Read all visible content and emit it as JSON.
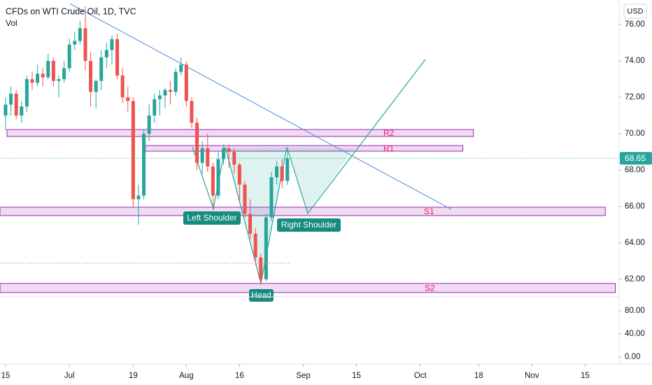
{
  "chart_data": {
    "type": "candlestick",
    "title": "CFDs on WTI Crude Oil, 1D, TVC",
    "subtitle": "Vol",
    "currency": "USD",
    "up_color": "#26a69a",
    "down_color": "#ef5350",
    "ohlc": [
      [
        71.0,
        72.0,
        70.2,
        71.6
      ],
      [
        71.6,
        72.6,
        71.0,
        72.2
      ],
      [
        72.2,
        72.4,
        70.8,
        71.0
      ],
      [
        71.0,
        71.8,
        70.6,
        71.5
      ],
      [
        71.5,
        73.2,
        71.2,
        73.0
      ],
      [
        73.0,
        73.4,
        72.4,
        72.8
      ],
      [
        72.8,
        73.8,
        72.6,
        73.3
      ],
      [
        73.3,
        73.6,
        72.6,
        73.1
      ],
      [
        73.1,
        74.4,
        73.0,
        74.0
      ],
      [
        74.0,
        74.2,
        72.6,
        72.9
      ],
      [
        72.9,
        73.2,
        72.0,
        73.0
      ],
      [
        73.0,
        74.0,
        72.8,
        73.6
      ],
      [
        73.6,
        75.2,
        73.4,
        74.9
      ],
      [
        74.9,
        75.6,
        74.6,
        75.1
      ],
      [
        75.1,
        76.2,
        74.9,
        75.8
      ],
      [
        75.8,
        77.0,
        73.5,
        74.0
      ],
      [
        74.0,
        74.5,
        71.5,
        72.3
      ],
      [
        72.3,
        73.0,
        71.4,
        72.9
      ],
      [
        72.9,
        74.6,
        72.4,
        74.2
      ],
      [
        74.2,
        75.0,
        73.6,
        74.6
      ],
      [
        74.6,
        75.4,
        73.8,
        75.2
      ],
      [
        75.2,
        75.5,
        73.0,
        73.2
      ],
      [
        73.2,
        73.6,
        71.7,
        72.0
      ],
      [
        72.0,
        72.6,
        71.2,
        71.8
      ],
      [
        71.8,
        72.0,
        65.9,
        66.4
      ],
      [
        66.4,
        67.2,
        65.0,
        66.6
      ],
      [
        66.6,
        70.2,
        66.4,
        70.0
      ],
      [
        70.0,
        71.6,
        69.6,
        71.0
      ],
      [
        71.0,
        72.2,
        70.6,
        71.9
      ],
      [
        71.9,
        72.4,
        71.0,
        72.1
      ],
      [
        72.1,
        72.5,
        71.4,
        72.4
      ],
      [
        72.4,
        72.9,
        71.6,
        72.3
      ],
      [
        72.3,
        73.6,
        72.1,
        73.4
      ],
      [
        73.4,
        74.2,
        73.2,
        73.8
      ],
      [
        73.8,
        74.0,
        71.5,
        71.8
      ],
      [
        71.8,
        72.0,
        70.3,
        70.6
      ],
      [
        70.6,
        70.9,
        68.0,
        68.4
      ],
      [
        68.4,
        69.6,
        67.8,
        69.2
      ],
      [
        69.2,
        70.0,
        67.9,
        68.2
      ],
      [
        68.2,
        68.4,
        65.8,
        66.6
      ],
      [
        66.6,
        69.0,
        66.4,
        68.6
      ],
      [
        68.6,
        69.4,
        68.3,
        69.2
      ],
      [
        69.2,
        69.4,
        68.1,
        69.0
      ],
      [
        69.0,
        69.2,
        67.8,
        68.3
      ],
      [
        68.3,
        68.4,
        66.2,
        67.2
      ],
      [
        67.2,
        67.4,
        65.4,
        65.6
      ],
      [
        65.6,
        66.4,
        64.2,
        64.5
      ],
      [
        64.5,
        64.8,
        62.8,
        63.2
      ],
      [
        63.2,
        63.4,
        61.7,
        62.0
      ],
      [
        62.0,
        65.6,
        61.9,
        65.4
      ],
      [
        65.4,
        67.9,
        65.2,
        67.6
      ],
      [
        67.6,
        68.5,
        67.2,
        68.2
      ],
      [
        68.2,
        68.6,
        67.0,
        67.4
      ],
      [
        67.4,
        69.1,
        67.2,
        68.65
      ]
    ],
    "last_price": {
      "value": 68.65,
      "label": "68.65"
    },
    "xlim": [
      -1.05,
      115.4
    ],
    "xticks": [
      {
        "value": 0,
        "label": "15"
      },
      {
        "value": 12,
        "label": "Jul"
      },
      {
        "value": 24,
        "label": "19"
      },
      {
        "value": 34,
        "label": "Aug"
      },
      {
        "value": 44,
        "label": "16"
      },
      {
        "value": 56,
        "label": "Sep"
      },
      {
        "value": 66,
        "label": "15"
      },
      {
        "value": 78,
        "label": "Oct"
      },
      {
        "value": 89,
        "label": "18"
      },
      {
        "value": 99,
        "label": "Nov"
      },
      {
        "value": 109,
        "label": "15"
      }
    ],
    "ylim": [
      61.19,
      77.35
    ],
    "yticks": [
      {
        "value": 62,
        "label": "62.00"
      },
      {
        "value": 64,
        "label": "64.00"
      },
      {
        "value": 66,
        "label": "66.00"
      },
      {
        "value": 68,
        "label": "68.00"
      },
      {
        "value": 70,
        "label": "70.00"
      },
      {
        "value": 72,
        "label": "72.00"
      },
      {
        "value": 74,
        "label": "74.00"
      },
      {
        "value": 76,
        "label": "76.00"
      }
    ],
    "y2lim": [
      -12.1,
      109.1
    ],
    "y2ticks": [
      {
        "value": 0,
        "label": "0.00"
      },
      {
        "value": 40,
        "label": "40.00"
      },
      {
        "value": 80,
        "label": "80.00"
      }
    ],
    "zones": [
      {
        "label": "R2",
        "top": 70.23,
        "bottom": 69.85,
        "start": 0.26,
        "end": 88
      },
      {
        "label": "R1",
        "top": 69.35,
        "bottom": 69.04,
        "start": 26.3,
        "end": 86
      },
      {
        "label": "S1",
        "top": 65.96,
        "bottom": 65.5,
        "start": -1.05,
        "end": 112.8
      },
      {
        "label": "S2",
        "top": 61.77,
        "bottom": 61.27,
        "start": -1.05,
        "end": 114.7
      }
    ],
    "trendline": {
      "start": [
        12.1,
        77.15
      ],
      "end": [
        83.8,
        65.85
      ],
      "color": "#4a8bd6"
    },
    "annotations": [
      "Left Shoulder",
      "Head",
      "Right Shoulder"
    ]
  }
}
